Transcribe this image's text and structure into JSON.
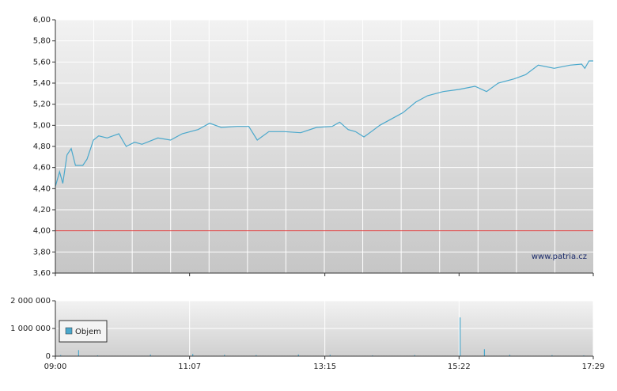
{
  "chart_data": [
    {
      "type": "line",
      "color": "#4aa8cc",
      "x": [
        0,
        4,
        7,
        11,
        15,
        19,
        26,
        30,
        36,
        41,
        49,
        60,
        67,
        75,
        82,
        97,
        109,
        120,
        135,
        146,
        157,
        172,
        183,
        191,
        202,
        217,
        232,
        247,
        262,
        269,
        277,
        284,
        292,
        299,
        307,
        318,
        329,
        341,
        352,
        367,
        382,
        397,
        408,
        419,
        434,
        445,
        457,
        472,
        487,
        498,
        501,
        505,
        509
      ],
      "values": [
        4.42,
        4.56,
        4.45,
        4.72,
        4.78,
        4.62,
        4.62,
        4.68,
        4.86,
        4.9,
        4.88,
        4.92,
        4.8,
        4.84,
        4.82,
        4.88,
        4.86,
        4.92,
        4.96,
        5.02,
        4.98,
        4.99,
        4.99,
        4.86,
        4.94,
        4.94,
        4.93,
        4.98,
        4.99,
        5.03,
        4.96,
        4.94,
        4.89,
        4.94,
        5.0,
        5.06,
        5.12,
        5.22,
        5.28,
        5.32,
        5.34,
        5.37,
        5.32,
        5.4,
        5.44,
        5.48,
        5.57,
        5.54,
        5.57,
        5.58,
        5.54,
        5.61,
        5.61
      ],
      "xlim": [
        0,
        509
      ],
      "ylim": [
        3.6,
        6.0
      ],
      "yticks": [
        {
          "value": 3.6,
          "label": "3,60"
        },
        {
          "value": 3.8,
          "label": "3,80"
        },
        {
          "value": 4.0,
          "label": "4,00"
        },
        {
          "value": 4.2,
          "label": "4,20"
        },
        {
          "value": 4.4,
          "label": "4,40"
        },
        {
          "value": 4.6,
          "label": "4,60"
        },
        {
          "value": 4.8,
          "label": "4,80"
        },
        {
          "value": 5.0,
          "label": "5,00"
        },
        {
          "value": 5.2,
          "label": "5,20"
        },
        {
          "value": 5.4,
          "label": "5,40"
        },
        {
          "value": 5.6,
          "label": "5,60"
        },
        {
          "value": 5.8,
          "label": "5,80"
        },
        {
          "value": 6.0,
          "label": "6,00"
        }
      ],
      "reference_line": 4.0,
      "reference_color": "#e03030",
      "watermark": "www.patria.cz",
      "grid": true
    },
    {
      "type": "bar",
      "x": [
        5,
        22,
        40,
        90,
        130,
        160,
        190,
        230,
        260,
        300,
        340,
        383,
        406,
        430,
        470,
        500
      ],
      "series": [
        {
          "name": "Objem",
          "color": "#4aa8cc",
          "values": [
            40000,
            220000,
            30000,
            60000,
            80000,
            50000,
            40000,
            60000,
            50000,
            30000,
            40000,
            1400000,
            250000,
            50000,
            40000,
            30000
          ]
        }
      ],
      "xlim": [
        0,
        509
      ],
      "ylim": [
        0,
        2000000
      ],
      "yticks": [
        0,
        {
          "value": 1000000,
          "label": "1 000 000"
        },
        {
          "value": 2000000,
          "label": "2 000 000"
        }
      ],
      "xticks": [
        {
          "value": 0,
          "label": "09:00"
        },
        {
          "value": 127,
          "label": "11:07"
        },
        {
          "value": 255,
          "label": "13:15"
        },
        {
          "value": 382,
          "label": "15:22"
        },
        {
          "value": 509,
          "label": "17:29"
        }
      ],
      "grid": true
    }
  ]
}
